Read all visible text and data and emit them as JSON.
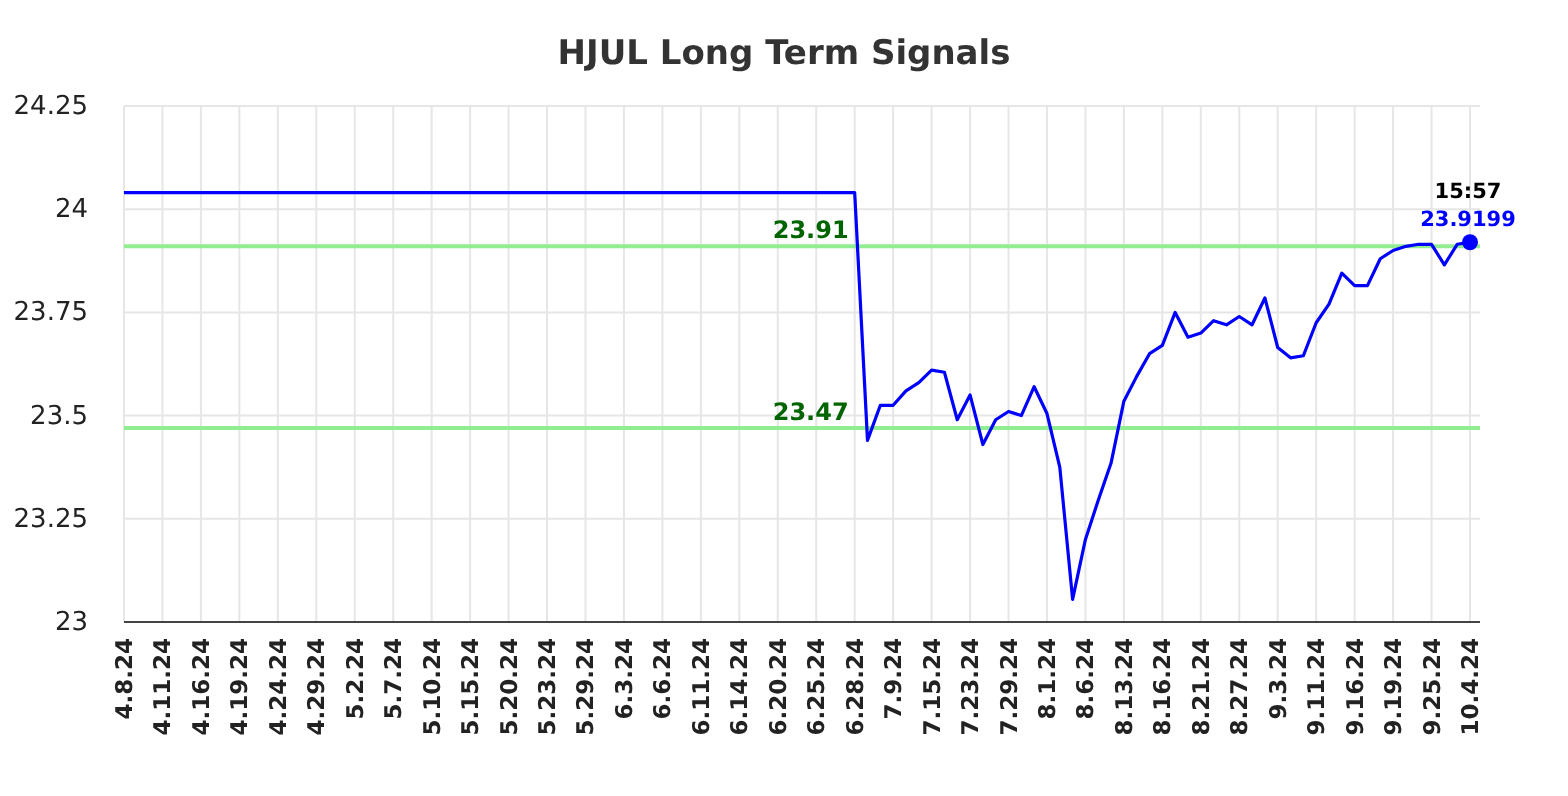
{
  "chart_data": {
    "type": "line",
    "title": "HJUL Long Term Signals",
    "categories": [
      "4.8.24",
      null,
      null,
      "4.11.24",
      null,
      null,
      "4.16.24",
      null,
      null,
      "4.19.24",
      null,
      null,
      "4.24.24",
      null,
      null,
      "4.29.24",
      null,
      null,
      "5.2.24",
      null,
      null,
      "5.7.24",
      null,
      null,
      "5.10.24",
      null,
      null,
      "5.15.24",
      null,
      null,
      "5.20.24",
      null,
      null,
      "5.23.24",
      null,
      null,
      "5.29.24",
      null,
      null,
      "6.3.24",
      null,
      null,
      "6.6.24",
      null,
      null,
      "6.11.24",
      null,
      null,
      "6.14.24",
      null,
      null,
      "6.20.24",
      null,
      null,
      "6.25.24",
      null,
      null,
      "6.28.24",
      null,
      null,
      "7.9.24",
      null,
      null,
      "7.15.24",
      null,
      null,
      "7.23.24",
      null,
      null,
      "7.29.24",
      null,
      null,
      "8.1.24",
      null,
      null,
      "8.6.24",
      null,
      null,
      "8.13.24",
      null,
      null,
      "8.16.24",
      null,
      null,
      "8.21.24",
      null,
      null,
      "8.27.24",
      null,
      null,
      "9.3.24",
      null,
      null,
      "9.11.24",
      null,
      null,
      "9.16.24",
      null,
      null,
      "9.19.24",
      null,
      null,
      "9.25.24",
      null,
      null,
      "10.4.24"
    ],
    "series": [
      {
        "color": "#0000ff",
        "values": [
          24.04,
          24.04,
          24.04,
          24.04,
          24.04,
          24.04,
          24.04,
          24.04,
          24.04,
          24.04,
          24.04,
          24.04,
          24.04,
          24.04,
          24.04,
          24.04,
          24.04,
          24.04,
          24.04,
          24.04,
          24.04,
          24.04,
          24.04,
          24.04,
          24.04,
          24.04,
          24.04,
          24.04,
          24.04,
          24.04,
          24.04,
          24.04,
          24.04,
          24.04,
          24.04,
          24.04,
          24.04,
          24.04,
          24.04,
          24.04,
          24.04,
          24.04,
          24.04,
          24.04,
          24.04,
          24.04,
          24.04,
          24.04,
          24.04,
          24.04,
          24.04,
          24.04,
          24.04,
          24.04,
          24.04,
          24.04,
          24.04,
          24.04,
          23.44,
          23.525,
          23.525,
          23.56,
          23.58,
          23.61,
          23.605,
          23.49,
          23.55,
          23.43,
          23.49,
          23.51,
          23.5,
          23.57,
          23.505,
          23.375,
          23.055,
          23.2,
          23.295,
          23.385,
          23.535,
          23.595,
          23.65,
          23.67,
          23.75,
          23.69,
          23.7,
          23.73,
          23.72,
          23.74,
          23.72,
          23.785,
          23.665,
          23.64,
          23.645,
          23.725,
          23.77,
          23.845,
          23.815,
          23.815,
          23.88,
          23.9,
          23.91,
          23.915,
          23.915,
          23.865,
          23.915,
          23.9199
        ]
      },
      {
        "type": "scatter",
        "marker": "circle",
        "color": "#0000ff",
        "x": [
          "10.4.24"
        ],
        "values": [
          23.9199
        ]
      }
    ],
    "ylim": [
      23,
      24.25
    ],
    "yticks": [
      23,
      23.25,
      23.5,
      23.75,
      24,
      24.25
    ],
    "grid": true,
    "ref_lines": [
      {
        "axis": "y",
        "value": 23.91,
        "label": "23.91",
        "color": "#90ee90"
      },
      {
        "axis": "y",
        "value": 23.47,
        "label": "23.47",
        "color": "#90ee90"
      }
    ],
    "annotations": [
      {
        "text": "15:57",
        "x": "10.4.24",
        "y": 23.9199
      },
      {
        "text": "23.9199",
        "x": "10.4.24",
        "y": 23.9199
      }
    ]
  }
}
